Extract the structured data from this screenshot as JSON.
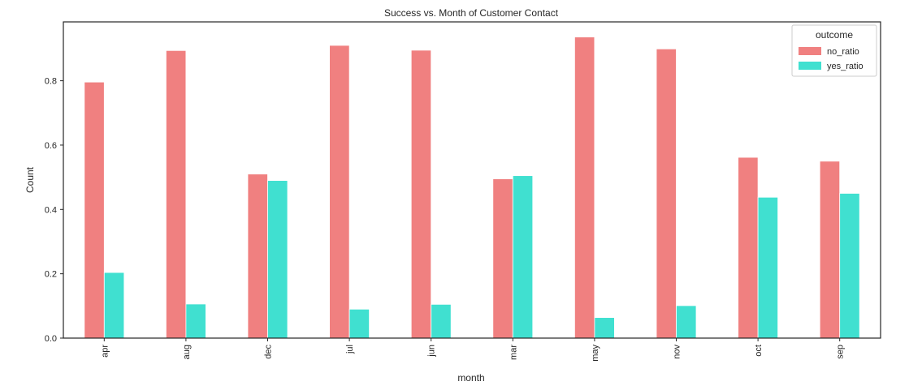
{
  "chart_data": {
    "type": "bar",
    "title": "Success vs. Month of Customer Contact",
    "xlabel": "month",
    "ylabel": "Count",
    "categories": [
      "apr",
      "aug",
      "dec",
      "jul",
      "jun",
      "mar",
      "may",
      "nov",
      "oct",
      "sep"
    ],
    "series": [
      {
        "name": "no_ratio",
        "color": "#f08080",
        "values": [
          0.796,
          0.894,
          0.51,
          0.91,
          0.895,
          0.495,
          0.936,
          0.899,
          0.562,
          0.55
        ]
      },
      {
        "name": "yes_ratio",
        "color": "#40e0d0",
        "values": [
          0.204,
          0.106,
          0.49,
          0.09,
          0.105,
          0.505,
          0.064,
          0.101,
          0.438,
          0.45
        ]
      }
    ],
    "yticks": [
      "0.0",
      "0.2",
      "0.4",
      "0.6",
      "0.8"
    ],
    "ytick_values": [
      0,
      0.2,
      0.4,
      0.6,
      0.8
    ],
    "ylim": [
      0,
      0.983
    ],
    "grid": false,
    "legend": {
      "title": "outcome",
      "placement": "top-right"
    }
  }
}
